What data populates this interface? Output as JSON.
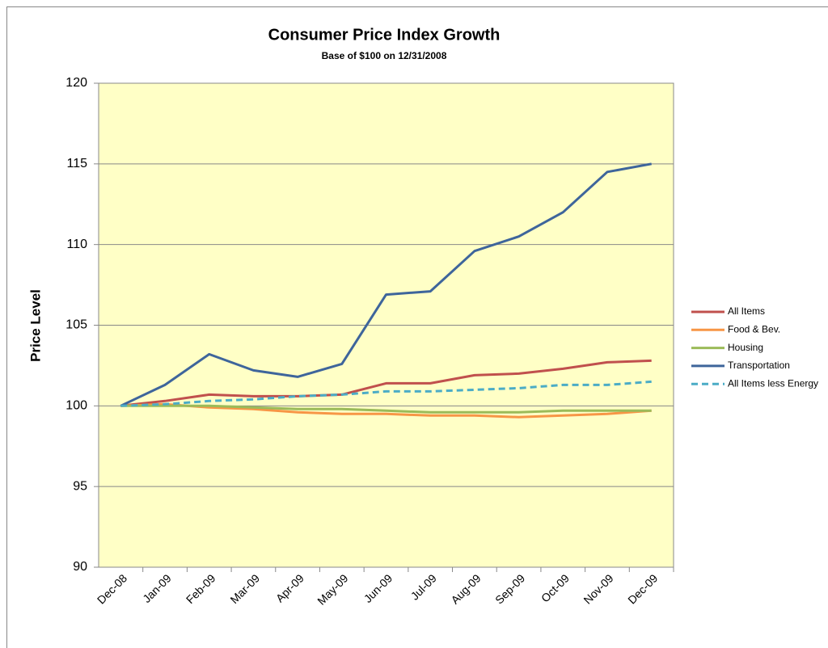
{
  "chart_data": {
    "type": "line",
    "title": "Consumer Price Index Growth",
    "subtitle": "Base of $100 on 12/31/2008",
    "y_label": "Price Level",
    "categories": [
      "Dec-08",
      "Jan-09",
      "Feb-09",
      "Mar-09",
      "Apr-09",
      "May-09",
      "Jun-09",
      "Jul-09",
      "Aug-09",
      "Sep-09",
      "Oct-09",
      "Nov-09",
      "Dec-09"
    ],
    "series": [
      {
        "name": "All Items",
        "color": "#c0504d",
        "values": [
          100,
          100.3,
          100.7,
          100.6,
          100.6,
          100.7,
          101.4,
          101.4,
          101.9,
          102.0,
          102.3,
          102.7,
          102.8
        ]
      },
      {
        "name": "Food & Bev.",
        "color": "#f79646",
        "values": [
          100,
          100.1,
          99.9,
          99.8,
          99.6,
          99.5,
          99.5,
          99.4,
          99.4,
          99.3,
          99.4,
          99.5,
          99.7
        ]
      },
      {
        "name": "Housing",
        "color": "#9bbb59",
        "values": [
          100,
          100.0,
          100.0,
          99.9,
          99.8,
          99.8,
          99.7,
          99.6,
          99.6,
          99.6,
          99.7,
          99.7,
          99.7
        ]
      },
      {
        "name": "Transportation",
        "color": "#3e659b",
        "values": [
          100,
          101.3,
          103.2,
          102.2,
          101.8,
          102.6,
          106.9,
          107.1,
          109.6,
          110.5,
          112.0,
          114.5,
          115.0
        ]
      },
      {
        "name": "All Items less Energy",
        "color": "#4bacc6",
        "dashed": true,
        "values": [
          100,
          100.1,
          100.3,
          100.4,
          100.6,
          100.7,
          100.9,
          100.9,
          101.0,
          101.1,
          101.3,
          101.3,
          101.5
        ]
      }
    ],
    "ylim": [
      90,
      120
    ],
    "yticks": [
      90,
      95,
      100,
      105,
      110,
      115,
      120
    ],
    "grid": true,
    "legend": "right"
  }
}
